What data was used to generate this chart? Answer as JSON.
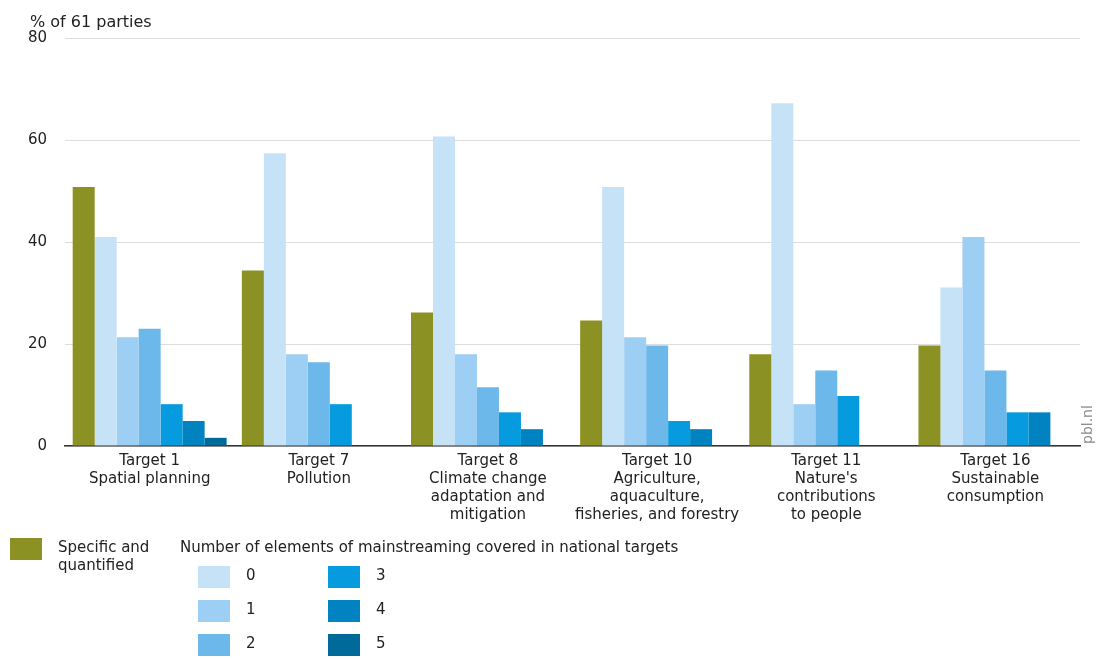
{
  "chart_data": {
    "type": "bar",
    "ylabel": "% of 61 parties",
    "categories": [
      "Target 1\nSpatial planning",
      "Target 7\nPollution",
      "Target 8\nClimate change\nadaptation and\nmitigation",
      "Target 10\nAgriculture,\naquaculture,\nfisheries, and forestry",
      "Target 11\nNature's\ncontributions\nto people",
      "Target 16\nSustainable\nconsumption"
    ],
    "series": [
      {
        "name": "Specific and quantified",
        "color": "#8c9123",
        "values": [
          50.8,
          34.4,
          26.2,
          24.6,
          18.0,
          19.7
        ]
      },
      {
        "name": "0",
        "color": "#c6e2f7",
        "values": [
          41.0,
          57.4,
          60.7,
          50.8,
          67.2,
          31.1
        ]
      },
      {
        "name": "1",
        "color": "#9dcef3",
        "values": [
          21.3,
          18.0,
          18.0,
          21.3,
          8.2,
          41.0
        ]
      },
      {
        "name": "2",
        "color": "#6cb8ea",
        "values": [
          23.0,
          16.4,
          11.5,
          19.7,
          14.8,
          14.8
        ]
      },
      {
        "name": "3",
        "color": "#069ade",
        "values": [
          8.2,
          8.2,
          6.6,
          4.9,
          9.8,
          6.6
        ]
      },
      {
        "name": "4",
        "color": "#0083c0",
        "values": [
          4.9,
          0,
          3.3,
          3.3,
          0,
          6.6
        ]
      },
      {
        "name": "5",
        "color": "#006a9a",
        "values": [
          1.6,
          0,
          0,
          0,
          0,
          0
        ]
      }
    ],
    "ylim": [
      0,
      80
    ],
    "yticks": [
      0,
      20,
      40,
      60,
      80
    ],
    "grid": "y",
    "legend": "bottom",
    "legend_title": "Number of elements of mainstreaming covered in national targets",
    "annotations": [
      "pbl.nl"
    ]
  }
}
